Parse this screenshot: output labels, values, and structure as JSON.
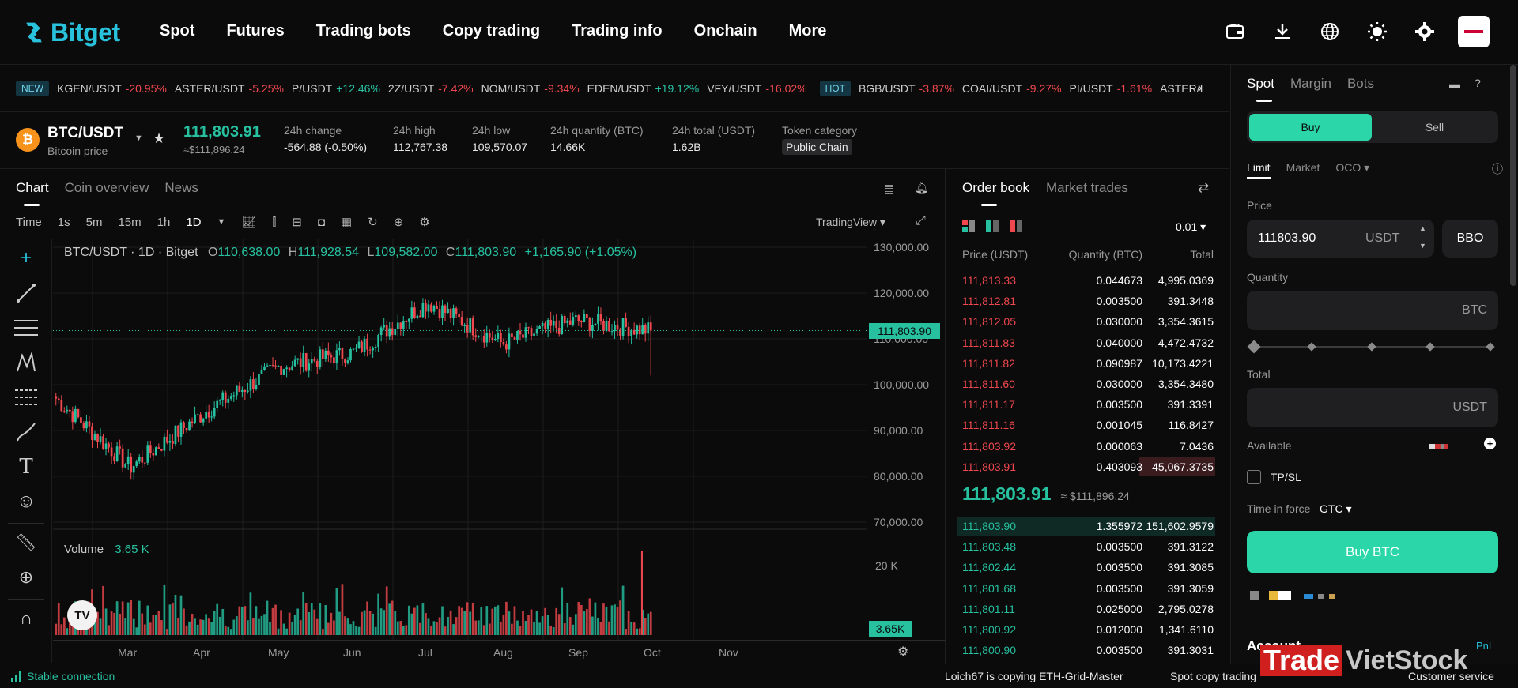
{
  "brand": {
    "name": "Bitget"
  },
  "nav": {
    "items": [
      "Spot",
      "Futures",
      "Trading bots",
      "Copy trading",
      "Trading info",
      "Onchain",
      "More"
    ]
  },
  "ticker": {
    "new_tag": "NEW",
    "hot_tag": "HOT",
    "items": [
      {
        "pair": "KGEN/USDT",
        "change": "-20.95%",
        "dir": "down"
      },
      {
        "pair": "ASTER/USDT",
        "change": "-5.25%",
        "dir": "down"
      },
      {
        "pair": "P/USDT",
        "change": "+12.46%",
        "dir": "up"
      },
      {
        "pair": "2Z/USDT",
        "change": "-7.42%",
        "dir": "down"
      },
      {
        "pair": "NOM/USDT",
        "change": "-9.34%",
        "dir": "down"
      },
      {
        "pair": "EDEN/USDT",
        "change": "+19.12%",
        "dir": "up"
      },
      {
        "pair": "VFY/USDT",
        "change": "-16.02%",
        "dir": "down"
      }
    ],
    "hot_items": [
      {
        "pair": "BGB/USDT",
        "change": "-3.87%",
        "dir": "down"
      },
      {
        "pair": "COAI/USDT",
        "change": "-9.27%",
        "dir": "down"
      },
      {
        "pair": "PI/USDT",
        "change": "-1.61%",
        "dir": "down"
      },
      {
        "pair": "ASTER/I",
        "change": "",
        "dir": "down"
      }
    ]
  },
  "pair": {
    "symbol": "BTC/USDT",
    "subtitle": "Bitcoin price",
    "last_price": "111,803.91",
    "last_price_usd": "≈$111,896.24",
    "change_label": "24h change",
    "change_value": "-564.88 (-0.50%)",
    "high_label": "24h high",
    "high_value": "112,767.38",
    "low_label": "24h low",
    "low_value": "109,570.07",
    "qty_label": "24h quantity (BTC)",
    "qty_value": "14.66K",
    "total_label": "24h total (USDT)",
    "total_value": "1.62B",
    "category_label": "Token category",
    "category_value": "Public Chain"
  },
  "chart_tabs": [
    "Chart",
    "Coin overview",
    "News"
  ],
  "intervals": [
    "Time",
    "1s",
    "5m",
    "15m",
    "1h",
    "1D"
  ],
  "chart_provider": "TradingView",
  "chart_header": {
    "title": "BTC/USDT · 1D · Bitget",
    "o_label": "O",
    "o_value": "110,638.00",
    "h_label": "H",
    "h_value": "111,928.54",
    "l_label": "L",
    "l_value": "109,582.00",
    "c_label": "C",
    "c_value": "111,803.90",
    "change": "+1,165.90 (+1.05%)"
  },
  "volume_header": {
    "label": "Volume",
    "value": "3.65 K"
  },
  "chart_data": {
    "type": "candlestick",
    "title": "BTC/USDT · 1D · Bitget",
    "y_ticks": [
      "130,000.00",
      "120,000.00",
      "110,000.00",
      "100,000.00",
      "90,000.00",
      "80,000.00",
      "70,000.00"
    ],
    "ylim": [
      70000,
      130000
    ],
    "last_price_label": "111,803.90",
    "x_ticks": [
      "Mar",
      "Apr",
      "May",
      "Jun",
      "Jul",
      "Aug",
      "Sep",
      "Oct",
      "Nov"
    ],
    "volume_tick": "20 K",
    "volume_last_label": "3.65K",
    "close_path_monthly": [
      {
        "month": "Feb end",
        "close": 97000
      },
      {
        "month": "Mar",
        "close": 82000
      },
      {
        "month": "Apr",
        "close": 94000
      },
      {
        "month": "May",
        "close": 104000
      },
      {
        "month": "Jun",
        "close": 107000
      },
      {
        "month": "Jul",
        "close": 118000
      },
      {
        "month": "Aug",
        "close": 109000
      },
      {
        "month": "Sep",
        "close": 114000
      },
      {
        "month": "Oct",
        "close": 111804
      }
    ]
  },
  "orderbook": {
    "tabs": [
      "Order book",
      "Market trades"
    ],
    "precision": "0.01",
    "headers": [
      "Price (USDT)",
      "Quantity (BTC)",
      "Total"
    ],
    "asks": [
      [
        "111,813.33",
        "0.044673",
        "4,995.0369"
      ],
      [
        "111,812.81",
        "0.003500",
        "391.3448"
      ],
      [
        "111,812.05",
        "0.030000",
        "3,354.3615"
      ],
      [
        "111,811.83",
        "0.040000",
        "4,472.4732"
      ],
      [
        "111,811.82",
        "0.090987",
        "10,173.4221"
      ],
      [
        "111,811.60",
        "0.030000",
        "3,354.3480"
      ],
      [
        "111,811.17",
        "0.003500",
        "391.3391"
      ],
      [
        "111,811.16",
        "0.001045",
        "116.8427"
      ],
      [
        "111,803.92",
        "0.000063",
        "7.0436"
      ],
      [
        "111,803.91",
        "0.403093",
        "45,067.3735"
      ]
    ],
    "mid_price": "111,803.91",
    "mid_usd": "≈ $111,896.24",
    "bids": [
      [
        "111,803.90",
        "1.355972",
        "151,602.9579"
      ],
      [
        "111,803.48",
        "0.003500",
        "391.3122"
      ],
      [
        "111,802.44",
        "0.003500",
        "391.3085"
      ],
      [
        "111,801.68",
        "0.003500",
        "391.3059"
      ],
      [
        "111,801.11",
        "0.025000",
        "2,795.0278"
      ],
      [
        "111,800.92",
        "0.012000",
        "1,341.6110"
      ],
      [
        "111,800.90",
        "0.003500",
        "391.3031"
      ]
    ]
  },
  "trade": {
    "tabs": [
      "Spot",
      "Margin",
      "Bots"
    ],
    "buy": "Buy",
    "sell": "Sell",
    "order_types": [
      "Limit",
      "Market",
      "OCO"
    ],
    "price_label": "Price",
    "price_value": "111803.90",
    "price_unit": "USDT",
    "bbo": "BBO",
    "qty_label": "Quantity",
    "qty_unit": "BTC",
    "total_label": "Total",
    "total_unit": "USDT",
    "available_label": "Available",
    "tpsl_label": "TP/SL",
    "tif_label": "Time in force",
    "tif_value": "GTC",
    "buy_button": "Buy BTC",
    "account_label": "Account",
    "pnl_label": "PnL"
  },
  "status": {
    "connection": "Stable connection",
    "copy_text": "Loich67 is copying ETH-Grid-Master",
    "spot_copy": "Spot copy trading",
    "customer": "Customer service",
    "watermark_a": "Trade",
    "watermark_b": "VietStock"
  },
  "colors": {
    "up": "#27c1a0",
    "down": "#f0484e",
    "accent": "#29c2dc",
    "buy": "#2bd6a8"
  }
}
